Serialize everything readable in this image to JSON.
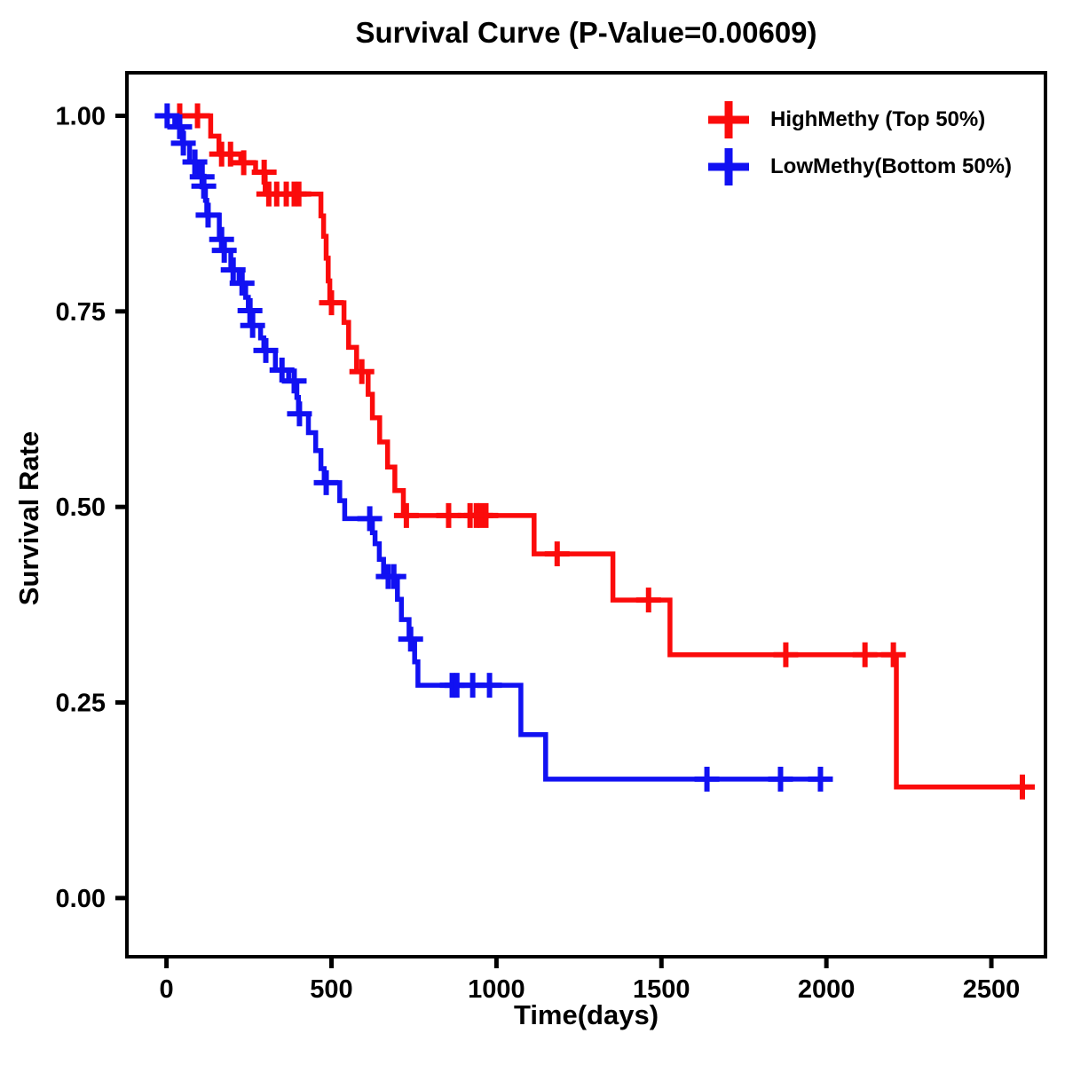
{
  "title": "Survival Curve (P-Value=0.00609)",
  "x_axis": {
    "label": "Time(days)",
    "ticks": [
      {
        "label": "0",
        "value": 0
      },
      {
        "label": "500",
        "value": 500
      },
      {
        "label": "1000",
        "value": 1000
      },
      {
        "label": "1500",
        "value": 1500
      },
      {
        "label": "2000",
        "value": 2000
      },
      {
        "label": "2500",
        "value": 2500
      }
    ],
    "range": [
      -120,
      2664
    ]
  },
  "y_axis": {
    "label": "Survival Rate",
    "ticks": [
      {
        "label": "1.00",
        "value": 1.0
      },
      {
        "label": "0.75",
        "value": 0.75
      },
      {
        "label": "0.50",
        "value": 0.5
      },
      {
        "label": "0.25",
        "value": 0.25
      },
      {
        "label": "0.00",
        "value": 0.0
      }
    ],
    "range": [
      -0.075,
      1.055
    ]
  },
  "legend": [
    {
      "label": "HighMethy (Top 50%)",
      "color": "#fb0b0b",
      "marker": "plus"
    },
    {
      "label": "LowMethy(Bottom 50%)",
      "color": "#1111f2",
      "marker": "plus"
    }
  ],
  "chart_data": {
    "type": "line",
    "subtype": "kaplan-meier-step",
    "title": "Survival Curve (P-Value=0.00609)",
    "xlabel": "Time(days)",
    "ylabel": "Survival Rate",
    "p_value": 0.00609,
    "xlim": [
      0,
      2600
    ],
    "ylim": [
      0.0,
      1.0
    ],
    "grid": false,
    "legend_position": "top-right",
    "series": [
      {
        "name": "HighMethy (Top 50%)",
        "color": "#fb0b0b",
        "end_time": 2615,
        "steps": [
          [
            0,
            1.0
          ],
          [
            134,
            0.974
          ],
          [
            159,
            0.951
          ],
          [
            225,
            0.94
          ],
          [
            270,
            0.928
          ],
          [
            299,
            0.9
          ],
          [
            468,
            0.872
          ],
          [
            476,
            0.846
          ],
          [
            484,
            0.818
          ],
          [
            490,
            0.789
          ],
          [
            495,
            0.761
          ],
          [
            538,
            0.736
          ],
          [
            552,
            0.704
          ],
          [
            576,
            0.673
          ],
          [
            611,
            0.644
          ],
          [
            624,
            0.614
          ],
          [
            646,
            0.583
          ],
          [
            670,
            0.551
          ],
          [
            692,
            0.521
          ],
          [
            718,
            0.489
          ],
          [
            1114,
            0.44
          ],
          [
            1353,
            0.381
          ],
          [
            1526,
            0.311
          ],
          [
            2212,
            0.142
          ]
        ],
        "censors": [
          [
            40,
            1.0
          ],
          [
            94,
            1.0
          ],
          [
            167,
            0.951
          ],
          [
            194,
            0.951
          ],
          [
            234,
            0.94
          ],
          [
            296,
            0.928
          ],
          [
            310,
            0.9
          ],
          [
            334,
            0.9
          ],
          [
            363,
            0.9
          ],
          [
            387,
            0.9
          ],
          [
            401,
            0.9
          ],
          [
            500,
            0.761
          ],
          [
            592,
            0.673
          ],
          [
            727,
            0.489
          ],
          [
            855,
            0.489
          ],
          [
            920,
            0.489
          ],
          [
            939,
            0.489
          ],
          [
            952,
            0.489
          ],
          [
            968,
            0.489
          ],
          [
            1184,
            0.44
          ],
          [
            1461,
            0.381
          ],
          [
            1877,
            0.311
          ],
          [
            2117,
            0.311
          ],
          [
            2203,
            0.311
          ],
          [
            2594,
            0.142
          ]
        ]
      },
      {
        "name": "LowMethy(Bottom 50%)",
        "color": "#1111f2",
        "end_time": 2018,
        "steps": [
          [
            0,
            1.0
          ],
          [
            25,
            0.986
          ],
          [
            48,
            0.965
          ],
          [
            70,
            0.941
          ],
          [
            100,
            0.922
          ],
          [
            111,
            0.91
          ],
          [
            118,
            0.892
          ],
          [
            122,
            0.873
          ],
          [
            160,
            0.842
          ],
          [
            170,
            0.828
          ],
          [
            195,
            0.803
          ],
          [
            220,
            0.786
          ],
          [
            240,
            0.768
          ],
          [
            248,
            0.751
          ],
          [
            258,
            0.732
          ],
          [
            285,
            0.716
          ],
          [
            295,
            0.7
          ],
          [
            330,
            0.675
          ],
          [
            370,
            0.661
          ],
          [
            395,
            0.64
          ],
          [
            400,
            0.619
          ],
          [
            430,
            0.595
          ],
          [
            452,
            0.572
          ],
          [
            468,
            0.549
          ],
          [
            478,
            0.531
          ],
          [
            525,
            0.508
          ],
          [
            540,
            0.485
          ],
          [
            624,
            0.467
          ],
          [
            632,
            0.453
          ],
          [
            645,
            0.433
          ],
          [
            658,
            0.411
          ],
          [
            700,
            0.382
          ],
          [
            712,
            0.356
          ],
          [
            735,
            0.331
          ],
          [
            752,
            0.302
          ],
          [
            762,
            0.272
          ],
          [
            1074,
            0.209
          ],
          [
            1149,
            0.152
          ]
        ],
        "censors": [
          [
            2,
            1.0
          ],
          [
            40,
            0.986
          ],
          [
            51,
            0.965
          ],
          [
            86,
            0.941
          ],
          [
            108,
            0.922
          ],
          [
            113,
            0.91
          ],
          [
            126,
            0.873
          ],
          [
            167,
            0.842
          ],
          [
            175,
            0.828
          ],
          [
            202,
            0.803
          ],
          [
            229,
            0.786
          ],
          [
            253,
            0.751
          ],
          [
            261,
            0.732
          ],
          [
            301,
            0.7
          ],
          [
            350,
            0.675
          ],
          [
            387,
            0.661
          ],
          [
            403,
            0.619
          ],
          [
            484,
            0.531
          ],
          [
            616,
            0.485
          ],
          [
            672,
            0.411
          ],
          [
            689,
            0.411
          ],
          [
            740,
            0.331
          ],
          [
            866,
            0.272
          ],
          [
            880,
            0.272
          ],
          [
            928,
            0.272
          ],
          [
            979,
            0.272
          ],
          [
            1638,
            0.152
          ],
          [
            1861,
            0.152
          ],
          [
            1982,
            0.152
          ]
        ]
      }
    ]
  }
}
